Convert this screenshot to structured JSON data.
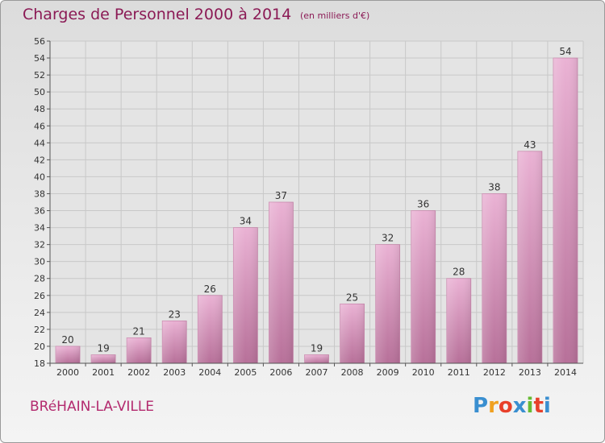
{
  "title": "Charges de Personnel 2000 à 2014",
  "subtitle": "(en milliers d'€)",
  "commune": "BRéHAIN-LA-VILLE",
  "logo": {
    "letters": [
      "P",
      "r",
      "o",
      "x",
      "i",
      "t",
      "i"
    ],
    "colors": [
      "#3a8fd0",
      "#f0a020",
      "#e8402a",
      "#3a8fd0",
      "#66bb33",
      "#e8402a",
      "#3a8fd0"
    ]
  },
  "colors": {
    "bar_top": "#eab2d4",
    "bar_bottom": "#b77099",
    "title": "#8b1a55",
    "axis": "#555555",
    "grid": "#c8c8c8"
  },
  "chart_data": {
    "type": "bar",
    "categories": [
      "2000",
      "2001",
      "2002",
      "2003",
      "2004",
      "2005",
      "2006",
      "2007",
      "2008",
      "2009",
      "2010",
      "2011",
      "2012",
      "2013",
      "2014"
    ],
    "values": [
      20,
      19,
      21,
      23,
      26,
      34,
      37,
      19,
      25,
      32,
      36,
      28,
      38,
      43,
      54
    ],
    "ylim": [
      18,
      56
    ],
    "yticks": [
      18,
      20,
      22,
      24,
      26,
      28,
      30,
      32,
      34,
      36,
      38,
      40,
      42,
      44,
      46,
      48,
      50,
      52,
      54,
      56
    ],
    "grid": true,
    "data_labels": true
  }
}
